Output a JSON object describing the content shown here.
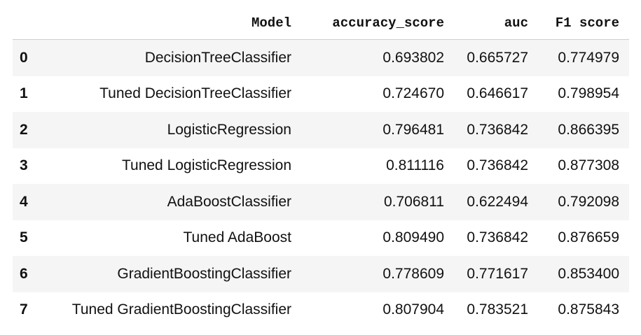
{
  "table": {
    "columns": [
      "",
      "Model",
      "accuracy_score",
      "auc",
      "F1 score"
    ],
    "rows": [
      {
        "index": "0",
        "model": "DecisionTreeClassifier",
        "accuracy_score": "0.693802",
        "auc": "0.665727",
        "f1": "0.774979"
      },
      {
        "index": "1",
        "model": "Tuned DecisionTreeClassifier",
        "accuracy_score": "0.724670",
        "auc": "0.646617",
        "f1": "0.798954"
      },
      {
        "index": "2",
        "model": "LogisticRegression",
        "accuracy_score": "0.796481",
        "auc": "0.736842",
        "f1": "0.866395"
      },
      {
        "index": "3",
        "model": "Tuned LogisticRegression",
        "accuracy_score": "0.811116",
        "auc": "0.736842",
        "f1": "0.877308"
      },
      {
        "index": "4",
        "model": "AdaBoostClassifier",
        "accuracy_score": "0.706811",
        "auc": "0.622494",
        "f1": "0.792098"
      },
      {
        "index": "5",
        "model": "Tuned AdaBoost",
        "accuracy_score": "0.809490",
        "auc": "0.736842",
        "f1": "0.876659"
      },
      {
        "index": "6",
        "model": "GradientBoostingClassifier",
        "accuracy_score": "0.778609",
        "auc": "0.771617",
        "f1": "0.853400"
      },
      {
        "index": "7",
        "model": "Tuned GradientBoostingClassifier",
        "accuracy_score": "0.807904",
        "auc": "0.783521",
        "f1": "0.875843"
      }
    ]
  },
  "colors": {
    "stripe": "#f5f5f5",
    "text": "#111111",
    "header_rule": "#cfcfcf"
  }
}
